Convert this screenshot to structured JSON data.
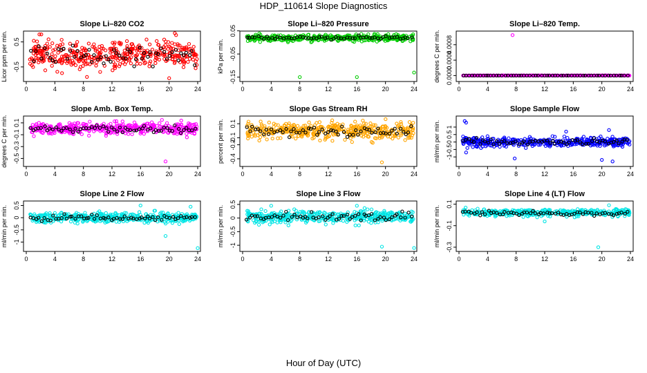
{
  "figure_title": "HDP_110614  Slope Diagnostics",
  "x_axis_label": "Hour of Day (UTC)",
  "chart_data": [
    {
      "type": "scatter",
      "title": "Slope Li–820 CO2",
      "ylabel": "Licor ppm per min.",
      "color": "#ff0000",
      "xlim": [
        0,
        24
      ],
      "ylim": [
        -1.0,
        0.85
      ],
      "yticks": [
        -0.5,
        0.5
      ],
      "xticks": [
        0,
        4,
        8,
        12,
        16,
        20,
        24
      ],
      "center": 0.0,
      "spread": 0.5,
      "black_spread": 0.35,
      "outliers": [
        [
          20.8,
          0.85
        ],
        [
          8.5,
          -0.9
        ],
        [
          20.0,
          -0.95
        ],
        [
          5.0,
          -0.75
        ]
      ],
      "seed": 11
    },
    {
      "type": "scatter",
      "title": "Slope Li–820 Pressure",
      "ylabel": "kPa per min.",
      "color": "#00cc00",
      "xlim": [
        0,
        24
      ],
      "ylim": [
        -0.16,
        0.04
      ],
      "yticks": [
        -0.15,
        -0.05,
        0.05
      ],
      "ytick_labels": [
        "-0.15",
        "-0.05",
        "0.05"
      ],
      "xticks": [
        0,
        4,
        8,
        12,
        16,
        20,
        24
      ],
      "center": 0.02,
      "spread": 0.012,
      "black_spread": 0.005,
      "outliers": [
        [
          8.0,
          -0.15
        ],
        [
          16.0,
          -0.15
        ],
        [
          24.0,
          -0.13
        ]
      ],
      "seed": 23
    },
    {
      "type": "scatter",
      "title": "Slope Li–820 Temp.",
      "ylabel": "degrees C per min.",
      "color": "#ff00ff",
      "xlim": [
        0,
        24
      ],
      "ylim": [
        -0.0001,
        0.0011
      ],
      "yticks": [
        0.0,
        0.0004,
        0.0008
      ],
      "ytick_labels": [
        "0.0000",
        "0.0004",
        "0.0008"
      ],
      "xticks": [
        0,
        4,
        8,
        12,
        16,
        20,
        24
      ],
      "center": 0.0,
      "spread": 0.0,
      "black_spread": 0.0,
      "outliers": [
        [
          7.5,
          0.00105
        ]
      ],
      "seed": 37
    },
    {
      "type": "scatter",
      "title": "Slope Amb. Box Temp.",
      "ylabel": "degrees C per min.",
      "color": "#ff00ff",
      "xlim": [
        0,
        24
      ],
      "ylim": [
        -0.6,
        0.18
      ],
      "yticks": [
        -0.5,
        -0.3,
        -0.1,
        0.1
      ],
      "xticks": [
        0,
        4,
        8,
        12,
        16,
        20,
        24
      ],
      "center": 0.0,
      "spread": 0.09,
      "black_spread": 0.05,
      "outliers": [
        [
          19.5,
          -0.55
        ],
        [
          19.0,
          0.15
        ]
      ],
      "seed": 41
    },
    {
      "type": "scatter",
      "title": "Slope Gas Stream RH",
      "ylabel": "percent per min.",
      "color": "#ffa500",
      "xlim": [
        0,
        24
      ],
      "ylim": [
        -0.48,
        0.18
      ],
      "yticks": [
        -0.4,
        -0.2,
        -0.1,
        0.1
      ],
      "xticks": [
        0,
        4,
        8,
        12,
        16,
        20,
        24
      ],
      "center": 0.0,
      "spread": 0.11,
      "black_spread": 0.06,
      "outliers": [
        [
          19.5,
          -0.45
        ]
      ],
      "seed": 53
    },
    {
      "type": "scatter",
      "title": "Slope Sample Flow",
      "ylabel": "ml/min per min.",
      "color": "#0000ff",
      "xlim": [
        0,
        24
      ],
      "ylim": [
        -1.5,
        1.6
      ],
      "yticks": [
        -1.0,
        -0.5,
        0.0,
        0.5,
        1.0
      ],
      "xticks": [
        0,
        4,
        8,
        12,
        16,
        20,
        24
      ],
      "center": 0.0,
      "spread": 0.25,
      "black_spread": 0.18,
      "outliers": [
        [
          0.8,
          1.4
        ],
        [
          1.0,
          1.3
        ],
        [
          21.5,
          -1.3
        ],
        [
          20.0,
          -1.2
        ],
        [
          15.0,
          0.7
        ],
        [
          1.0,
          -0.7
        ],
        [
          7.8,
          -1.1
        ],
        [
          21.0,
          0.8
        ]
      ],
      "seed": 67
    },
    {
      "type": "scatter",
      "title": "Slope Line 2 Flow",
      "ylabel": "ml/min per min.",
      "color": "#00e5e5",
      "xlim": [
        0,
        24
      ],
      "ylim": [
        -1.3,
        0.6
      ],
      "yticks": [
        -1.0,
        -0.5,
        0.0,
        0.5
      ],
      "xticks": [
        0,
        4,
        8,
        12,
        16,
        20,
        24
      ],
      "center": 0.0,
      "spread": 0.18,
      "black_spread": 0.1,
      "outliers": [
        [
          24.0,
          -1.25
        ],
        [
          19.5,
          -0.75
        ],
        [
          16.0,
          0.5
        ],
        [
          23.0,
          0.45
        ]
      ],
      "seed": 79
    },
    {
      "type": "scatter",
      "title": "Slope Line 3 Flow",
      "ylabel": "ml/min per min.",
      "color": "#00e5e5",
      "xlim": [
        0,
        24
      ],
      "ylim": [
        -1.15,
        0.55
      ],
      "yticks": [
        -1.0,
        -0.5,
        0.0,
        0.5
      ],
      "xticks": [
        0,
        4,
        8,
        12,
        16,
        20,
        24
      ],
      "center": 0.05,
      "spread": 0.2,
      "black_spread": 0.15,
      "outliers": [
        [
          19.5,
          -1.05
        ],
        [
          24.0,
          -1.1
        ],
        [
          4.0,
          0.45
        ],
        [
          16.0,
          0.45
        ]
      ],
      "seed": 83
    },
    {
      "type": "scatter",
      "title": "Slope Line 4 (LT) Flow",
      "ylabel": "ml/min per min.",
      "color": "#00e5e5",
      "xlim": [
        0,
        24
      ],
      "ylim": [
        -0.32,
        0.11
      ],
      "yticks": [
        -0.3,
        -0.1,
        0.1
      ],
      "xticks": [
        0,
        4,
        8,
        12,
        16,
        20,
        24
      ],
      "center": 0.02,
      "spread": 0.03,
      "black_spread": 0.02,
      "outliers": [
        [
          19.5,
          -0.3
        ],
        [
          12.0,
          -0.06
        ],
        [
          21.0,
          0.09
        ]
      ],
      "seed": 97
    }
  ]
}
